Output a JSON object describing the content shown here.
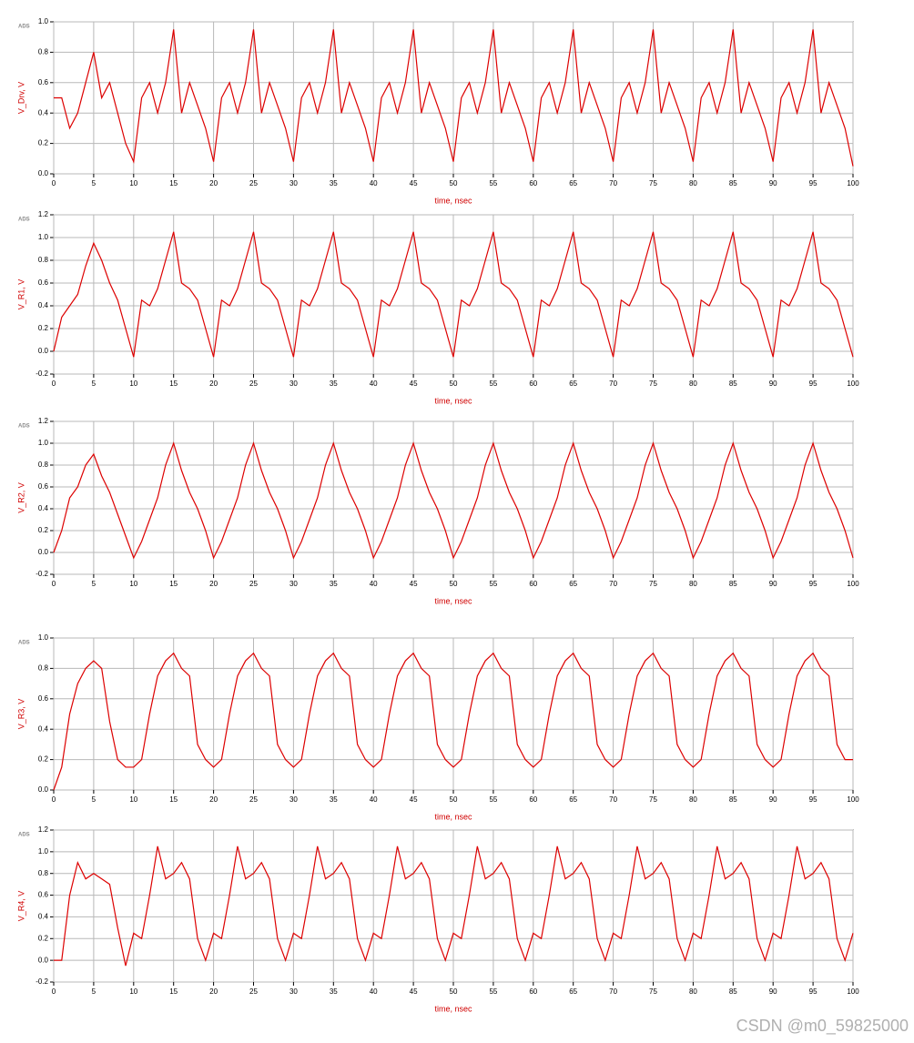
{
  "watermark": "CSDN @m0_59825000",
  "chart_data": [
    {
      "type": "line",
      "logo": "ADS",
      "ylabel": "V_Drv, V",
      "xlabel": "time, nsec",
      "color": "#dd0000",
      "grid": true,
      "xlim": [
        0,
        100
      ],
      "ylim": [
        0,
        1
      ],
      "xticks": [
        0,
        5,
        10,
        15,
        20,
        25,
        30,
        35,
        40,
        45,
        50,
        55,
        60,
        65,
        70,
        75,
        80,
        85,
        90,
        95,
        100
      ],
      "yticks": [
        {
          "value": 0,
          "label": "0.0"
        },
        0.2,
        0.4,
        0.6,
        0.8,
        {
          "value": 1,
          "label": "1.0"
        }
      ],
      "x": [
        0,
        1,
        2,
        3,
        4,
        5,
        6,
        7,
        8,
        9,
        10,
        11,
        12,
        13,
        14,
        15,
        16,
        17,
        18,
        19,
        20,
        21,
        22,
        23,
        24,
        25,
        26,
        27,
        28,
        29,
        30,
        31,
        32,
        33,
        34,
        35,
        36,
        37,
        38,
        39,
        40,
        41,
        42,
        43,
        44,
        45,
        46,
        47,
        48,
        49,
        50,
        51,
        52,
        53,
        54,
        55,
        56,
        57,
        58,
        59,
        60,
        61,
        62,
        63,
        64,
        65,
        66,
        67,
        68,
        69,
        70,
        71,
        72,
        73,
        74,
        75,
        76,
        77,
        78,
        79,
        80,
        81,
        82,
        83,
        84,
        85,
        86,
        87,
        88,
        89,
        90,
        91,
        92,
        93,
        94,
        95,
        96,
        97,
        98,
        99,
        100
      ],
      "values": [
        0.5,
        0.5,
        0.3,
        0.4,
        0.6,
        0.8,
        0.5,
        0.6,
        0.4,
        0.2,
        0.08,
        0.5,
        0.6,
        0.4,
        0.6,
        0.95,
        0.4,
        0.6,
        0.45,
        0.3,
        0.08,
        0.5,
        0.6,
        0.4,
        0.6,
        0.95,
        0.4,
        0.6,
        0.45,
        0.3,
        0.08,
        0.5,
        0.6,
        0.4,
        0.6,
        0.95,
        0.4,
        0.6,
        0.45,
        0.3,
        0.08,
        0.5,
        0.6,
        0.4,
        0.6,
        0.95,
        0.4,
        0.6,
        0.45,
        0.3,
        0.08,
        0.5,
        0.6,
        0.4,
        0.6,
        0.95,
        0.4,
        0.6,
        0.45,
        0.3,
        0.08,
        0.5,
        0.6,
        0.4,
        0.6,
        0.95,
        0.4,
        0.6,
        0.45,
        0.3,
        0.08,
        0.5,
        0.6,
        0.4,
        0.6,
        0.95,
        0.4,
        0.6,
        0.45,
        0.3,
        0.08,
        0.5,
        0.6,
        0.4,
        0.6,
        0.95,
        0.4,
        0.6,
        0.45,
        0.3,
        0.08,
        0.5,
        0.6,
        0.4,
        0.6,
        0.95,
        0.4,
        0.6,
        0.45,
        0.3,
        0.05
      ]
    },
    {
      "type": "line",
      "logo": "ADS",
      "ylabel": "V_R1, V",
      "xlabel": "time, nsec",
      "color": "#dd0000",
      "grid": true,
      "xlim": [
        0,
        100
      ],
      "ylim": [
        -0.2,
        1.2
      ],
      "xticks": [
        0,
        5,
        10,
        15,
        20,
        25,
        30,
        35,
        40,
        45,
        50,
        55,
        60,
        65,
        70,
        75,
        80,
        85,
        90,
        95,
        100
      ],
      "yticks": [
        -0.2,
        {
          "value": 0,
          "label": "0.0"
        },
        0.2,
        0.4,
        0.6,
        0.8,
        {
          "value": 1,
          "label": "1.0"
        },
        1.2
      ],
      "x": [
        0,
        1,
        2,
        3,
        4,
        5,
        6,
        7,
        8,
        9,
        10,
        11,
        12,
        13,
        14,
        15,
        16,
        17,
        18,
        19,
        20,
        21,
        22,
        23,
        24,
        25,
        26,
        27,
        28,
        29,
        30,
        31,
        32,
        33,
        34,
        35,
        36,
        37,
        38,
        39,
        40,
        41,
        42,
        43,
        44,
        45,
        46,
        47,
        48,
        49,
        50,
        51,
        52,
        53,
        54,
        55,
        56,
        57,
        58,
        59,
        60,
        61,
        62,
        63,
        64,
        65,
        66,
        67,
        68,
        69,
        70,
        71,
        72,
        73,
        74,
        75,
        76,
        77,
        78,
        79,
        80,
        81,
        82,
        83,
        84,
        85,
        86,
        87,
        88,
        89,
        90,
        91,
        92,
        93,
        94,
        95,
        96,
        97,
        98,
        99,
        100
      ],
      "values": [
        0,
        0.3,
        0.4,
        0.5,
        0.75,
        0.95,
        0.8,
        0.6,
        0.45,
        0.2,
        -0.05,
        0.45,
        0.4,
        0.55,
        0.8,
        1.05,
        0.6,
        0.55,
        0.45,
        0.2,
        -0.05,
        0.45,
        0.4,
        0.55,
        0.8,
        1.05,
        0.6,
        0.55,
        0.45,
        0.2,
        -0.05,
        0.45,
        0.4,
        0.55,
        0.8,
        1.05,
        0.6,
        0.55,
        0.45,
        0.2,
        -0.05,
        0.45,
        0.4,
        0.55,
        0.8,
        1.05,
        0.6,
        0.55,
        0.45,
        0.2,
        -0.05,
        0.45,
        0.4,
        0.55,
        0.8,
        1.05,
        0.6,
        0.55,
        0.45,
        0.2,
        -0.05,
        0.45,
        0.4,
        0.55,
        0.8,
        1.05,
        0.6,
        0.55,
        0.45,
        0.2,
        -0.05,
        0.45,
        0.4,
        0.55,
        0.8,
        1.05,
        0.6,
        0.55,
        0.45,
        0.2,
        -0.05,
        0.45,
        0.4,
        0.55,
        0.8,
        1.05,
        0.6,
        0.55,
        0.45,
        0.2,
        -0.05,
        0.45,
        0.4,
        0.55,
        0.8,
        1.05,
        0.6,
        0.55,
        0.45,
        0.2,
        -0.05
      ]
    },
    {
      "type": "line",
      "logo": "ADS",
      "ylabel": "V_R2, V",
      "xlabel": "time, nsec",
      "color": "#dd0000",
      "grid": true,
      "xlim": [
        0,
        100
      ],
      "ylim": [
        -0.2,
        1.2
      ],
      "xticks": [
        0,
        5,
        10,
        15,
        20,
        25,
        30,
        35,
        40,
        45,
        50,
        55,
        60,
        65,
        70,
        75,
        80,
        85,
        90,
        95,
        100
      ],
      "yticks": [
        -0.2,
        {
          "value": 0,
          "label": "0.0"
        },
        0.2,
        0.4,
        0.6,
        0.8,
        {
          "value": 1,
          "label": "1.0"
        },
        1.2
      ],
      "x": [
        0,
        1,
        2,
        3,
        4,
        5,
        6,
        7,
        8,
        9,
        10,
        11,
        12,
        13,
        14,
        15,
        16,
        17,
        18,
        19,
        20,
        21,
        22,
        23,
        24,
        25,
        26,
        27,
        28,
        29,
        30,
        31,
        32,
        33,
        34,
        35,
        36,
        37,
        38,
        39,
        40,
        41,
        42,
        43,
        44,
        45,
        46,
        47,
        48,
        49,
        50,
        51,
        52,
        53,
        54,
        55,
        56,
        57,
        58,
        59,
        60,
        61,
        62,
        63,
        64,
        65,
        66,
        67,
        68,
        69,
        70,
        71,
        72,
        73,
        74,
        75,
        76,
        77,
        78,
        79,
        80,
        81,
        82,
        83,
        84,
        85,
        86,
        87,
        88,
        89,
        90,
        91,
        92,
        93,
        94,
        95,
        96,
        97,
        98,
        99,
        100
      ],
      "values": [
        0,
        0.2,
        0.5,
        0.6,
        0.8,
        0.9,
        0.7,
        0.55,
        0.35,
        0.15,
        -0.05,
        0.1,
        0.3,
        0.5,
        0.8,
        1.0,
        0.75,
        0.55,
        0.4,
        0.2,
        -0.05,
        0.1,
        0.3,
        0.5,
        0.8,
        1.0,
        0.75,
        0.55,
        0.4,
        0.2,
        -0.05,
        0.1,
        0.3,
        0.5,
        0.8,
        1.0,
        0.75,
        0.55,
        0.4,
        0.2,
        -0.05,
        0.1,
        0.3,
        0.5,
        0.8,
        1.0,
        0.75,
        0.55,
        0.4,
        0.2,
        -0.05,
        0.1,
        0.3,
        0.5,
        0.8,
        1.0,
        0.75,
        0.55,
        0.4,
        0.2,
        -0.05,
        0.1,
        0.3,
        0.5,
        0.8,
        1.0,
        0.75,
        0.55,
        0.4,
        0.2,
        -0.05,
        0.1,
        0.3,
        0.5,
        0.8,
        1.0,
        0.75,
        0.55,
        0.4,
        0.2,
        -0.05,
        0.1,
        0.3,
        0.5,
        0.8,
        1.0,
        0.75,
        0.55,
        0.4,
        0.2,
        -0.05,
        0.1,
        0.3,
        0.5,
        0.8,
        1.0,
        0.75,
        0.55,
        0.4,
        0.2,
        -0.05
      ]
    },
    {
      "type": "line",
      "logo": "ADS",
      "ylabel": "V_R3, V",
      "xlabel": "time, nsec",
      "color": "#dd0000",
      "grid": true,
      "xlim": [
        0,
        100
      ],
      "ylim": [
        0,
        1
      ],
      "xticks": [
        0,
        5,
        10,
        15,
        20,
        25,
        30,
        35,
        40,
        45,
        50,
        55,
        60,
        65,
        70,
        75,
        80,
        85,
        90,
        95,
        100
      ],
      "yticks": [
        {
          "value": 0,
          "label": "0.0"
        },
        0.2,
        0.4,
        0.6,
        0.8,
        {
          "value": 1,
          "label": "1.0"
        }
      ],
      "x": [
        0,
        1,
        2,
        3,
        4,
        5,
        6,
        7,
        8,
        9,
        10,
        11,
        12,
        13,
        14,
        15,
        16,
        17,
        18,
        19,
        20,
        21,
        22,
        23,
        24,
        25,
        26,
        27,
        28,
        29,
        30,
        31,
        32,
        33,
        34,
        35,
        36,
        37,
        38,
        39,
        40,
        41,
        42,
        43,
        44,
        45,
        46,
        47,
        48,
        49,
        50,
        51,
        52,
        53,
        54,
        55,
        56,
        57,
        58,
        59,
        60,
        61,
        62,
        63,
        64,
        65,
        66,
        67,
        68,
        69,
        70,
        71,
        72,
        73,
        74,
        75,
        76,
        77,
        78,
        79,
        80,
        81,
        82,
        83,
        84,
        85,
        86,
        87,
        88,
        89,
        90,
        91,
        92,
        93,
        94,
        95,
        96,
        97,
        98,
        99,
        100
      ],
      "values": [
        0,
        0.15,
        0.5,
        0.7,
        0.8,
        0.85,
        0.8,
        0.45,
        0.2,
        0.15,
        0.15,
        0.2,
        0.5,
        0.75,
        0.85,
        0.9,
        0.8,
        0.75,
        0.3,
        0.2,
        0.15,
        0.2,
        0.5,
        0.75,
        0.85,
        0.9,
        0.8,
        0.75,
        0.3,
        0.2,
        0.15,
        0.2,
        0.5,
        0.75,
        0.85,
        0.9,
        0.8,
        0.75,
        0.3,
        0.2,
        0.15,
        0.2,
        0.5,
        0.75,
        0.85,
        0.9,
        0.8,
        0.75,
        0.3,
        0.2,
        0.15,
        0.2,
        0.5,
        0.75,
        0.85,
        0.9,
        0.8,
        0.75,
        0.3,
        0.2,
        0.15,
        0.2,
        0.5,
        0.75,
        0.85,
        0.9,
        0.8,
        0.75,
        0.3,
        0.2,
        0.15,
        0.2,
        0.5,
        0.75,
        0.85,
        0.9,
        0.8,
        0.75,
        0.3,
        0.2,
        0.15,
        0.2,
        0.5,
        0.75,
        0.85,
        0.9,
        0.8,
        0.75,
        0.3,
        0.2,
        0.15,
        0.2,
        0.5,
        0.75,
        0.85,
        0.9,
        0.8,
        0.75,
        0.3,
        0.2,
        0.2
      ]
    },
    {
      "type": "line",
      "logo": "ADS",
      "ylabel": "V_R4, V",
      "xlabel": "time, nsec",
      "color": "#dd0000",
      "grid": true,
      "xlim": [
        0,
        100
      ],
      "ylim": [
        -0.2,
        1.2
      ],
      "xticks": [
        0,
        5,
        10,
        15,
        20,
        25,
        30,
        35,
        40,
        45,
        50,
        55,
        60,
        65,
        70,
        75,
        80,
        85,
        90,
        95,
        100
      ],
      "yticks": [
        -0.2,
        {
          "value": 0,
          "label": "0.0"
        },
        0.2,
        0.4,
        0.6,
        0.8,
        {
          "value": 1,
          "label": "1.0"
        },
        1.2
      ],
      "x": [
        0,
        1,
        2,
        3,
        4,
        5,
        6,
        7,
        8,
        9,
        10,
        11,
        12,
        13,
        14,
        15,
        16,
        17,
        18,
        19,
        20,
        21,
        22,
        23,
        24,
        25,
        26,
        27,
        28,
        29,
        30,
        31,
        32,
        33,
        34,
        35,
        36,
        37,
        38,
        39,
        40,
        41,
        42,
        43,
        44,
        45,
        46,
        47,
        48,
        49,
        50,
        51,
        52,
        53,
        54,
        55,
        56,
        57,
        58,
        59,
        60,
        61,
        62,
        63,
        64,
        65,
        66,
        67,
        68,
        69,
        70,
        71,
        72,
        73,
        74,
        75,
        76,
        77,
        78,
        79,
        80,
        81,
        82,
        83,
        84,
        85,
        86,
        87,
        88,
        89,
        90,
        91,
        92,
        93,
        94,
        95,
        96,
        97,
        98,
        99,
        100
      ],
      "values": [
        0,
        0,
        0.6,
        0.9,
        0.75,
        0.8,
        0.75,
        0.7,
        0.3,
        -0.05,
        0.25,
        0.2,
        0.6,
        1.05,
        0.75,
        0.8,
        0.9,
        0.75,
        0.2,
        0,
        0.25,
        0.2,
        0.6,
        1.05,
        0.75,
        0.8,
        0.9,
        0.75,
        0.2,
        0,
        0.25,
        0.2,
        0.6,
        1.05,
        0.75,
        0.8,
        0.9,
        0.75,
        0.2,
        0,
        0.25,
        0.2,
        0.6,
        1.05,
        0.75,
        0.8,
        0.9,
        0.75,
        0.2,
        0,
        0.25,
        0.2,
        0.6,
        1.05,
        0.75,
        0.8,
        0.9,
        0.75,
        0.2,
        0,
        0.25,
        0.2,
        0.6,
        1.05,
        0.75,
        0.8,
        0.9,
        0.75,
        0.2,
        0,
        0.25,
        0.2,
        0.6,
        1.05,
        0.75,
        0.8,
        0.9,
        0.75,
        0.2,
        0,
        0.25,
        0.2,
        0.6,
        1.05,
        0.75,
        0.8,
        0.9,
        0.75,
        0.2,
        0,
        0.25,
        0.2,
        0.6,
        1.05,
        0.75,
        0.8,
        0.9,
        0.75,
        0.2,
        0,
        0.25
      ]
    }
  ]
}
